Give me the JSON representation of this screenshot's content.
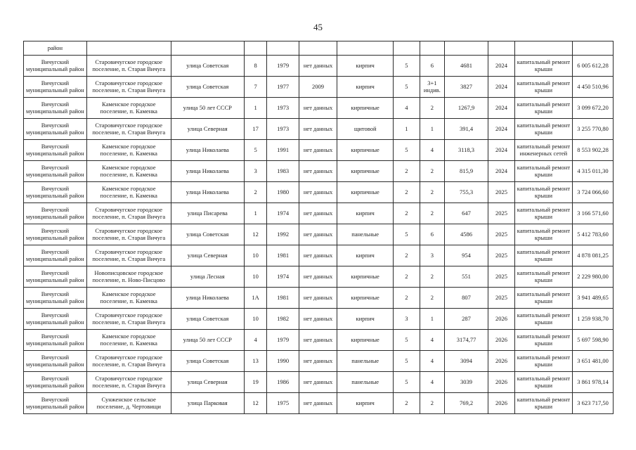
{
  "page": {
    "number": "45"
  },
  "table": {
    "carryover_row": [
      "район",
      "",
      "",
      "",
      "",
      "",
      "",
      "",
      "",
      "",
      "",
      "",
      ""
    ],
    "rows": [
      [
        "Вичугский муниципальный район",
        "Старовичугское городское поселение, п. Старая Вичуга",
        "улица Советская",
        "8",
        "1979",
        "нет данных",
        "кирпич",
        "5",
        "6",
        "4681",
        "2024",
        "капитальный ремонт крыши",
        "6 005 612,28"
      ],
      [
        "Вичугский муниципальный район",
        "Старовичугское городское поселение, п. Старая Вичуга",
        "улица Советская",
        "7",
        "1977",
        "2009",
        "кирпич",
        "5",
        "3+1 индив.",
        "3827",
        "2024",
        "капитальный ремонт крыши",
        "4 450 510,96"
      ],
      [
        "Вичугский муниципальный район",
        "Каменское городское поселение, п. Каменка",
        "улица 50 лет СССР",
        "1",
        "1973",
        "нет данных",
        "кирпичные",
        "4",
        "2",
        "1267,9",
        "2024",
        "капитальный ремонт крыши",
        "3 099 672,20"
      ],
      [
        "Вичугский муниципальный район",
        "Старовичугское городское поселение, п. Старая Вичуга",
        "улица Северная",
        "17",
        "1973",
        "нет данных",
        "щитовой",
        "1",
        "1",
        "391,4",
        "2024",
        "капитальный ремонт крыши",
        "3 255 770,80"
      ],
      [
        "Вичугский муниципальный район",
        "Каменское городское поселение, п. Каменка",
        "улица Николаева",
        "5",
        "1991",
        "нет данных",
        "кирпичные",
        "5",
        "4",
        "3118,3",
        "2024",
        "капитальный ремонт инженерных сетей",
        "8 553 902,28"
      ],
      [
        "Вичугский муниципальный район",
        "Каменское городское поселение, п. Каменка",
        "улица Николаева",
        "3",
        "1983",
        "нет данных",
        "кирпичные",
        "2",
        "2",
        "815,9",
        "2024",
        "капитальный ремонт крыши",
        "4 315 011,30"
      ],
      [
        "Вичугский муниципальный район",
        "Каменское городское поселение, п. Каменка",
        "улица Николаева",
        "2",
        "1980",
        "нет данных",
        "кирпичные",
        "2",
        "2",
        "755,3",
        "2025",
        "капитальный ремонт крыши",
        "3 724 066,60"
      ],
      [
        "Вичугский муниципальный район",
        "Старовичугское городское поселение, п. Старая Вичуга",
        "улица Писарева",
        "1",
        "1974",
        "нет данных",
        "кирпич",
        "2",
        "2",
        "647",
        "2025",
        "капитальный ремонт крыши",
        "3 166 571,60"
      ],
      [
        "Вичугский муниципальный район",
        "Старовичугское городское поселение, п. Старая Вичуга",
        "улица Советская",
        "12",
        "1992",
        "нет данных",
        "панельные",
        "5",
        "6",
        "4586",
        "2025",
        "капитальный ремонт крыши",
        "5 412 783,60"
      ],
      [
        "Вичугский муниципальный район",
        "Старовичугское городское поселение, п. Старая Вичуга",
        "улица Северная",
        "10",
        "1981",
        "нет данных",
        "кирпич",
        "2",
        "3",
        "954",
        "2025",
        "капитальный ремонт крыши",
        "4 878 081,25"
      ],
      [
        "Вичугский муниципальный район",
        "Новописцовское городское поселение, п. Ново-Писцово",
        "улица Лесная",
        "10",
        "1974",
        "нет данных",
        "кирпичные",
        "2",
        "2",
        "551",
        "2025",
        "капитальный ремонт крыши",
        "2 229 980,00"
      ],
      [
        "Вичугский муниципальный район",
        "Каменское городское поселение, п. Каменка",
        "улица Николаева",
        "1А",
        "1981",
        "нет данных",
        "кирпичные",
        "2",
        "2",
        "807",
        "2025",
        "капитальный ремонт крыши",
        "3 941 489,65"
      ],
      [
        "Вичугский муниципальный район",
        "Старовичугское городское поселение, п. Старая Вичуга",
        "улица Советская",
        "10",
        "1982",
        "нет данных",
        "кирпич",
        "3",
        "1",
        "287",
        "2026",
        "капитальный ремонт крыши",
        "1 259 938,70"
      ],
      [
        "Вичугский муниципальный район",
        "Каменское городское поселение, п. Каменка",
        "улица 50 лет СССР",
        "4",
        "1979",
        "нет данных",
        "кирпичные",
        "5",
        "4",
        "3174,77",
        "2026",
        "капитальный ремонт крыши",
        "5 697 598,90"
      ],
      [
        "Вичугский муниципальный район",
        "Старовичугское городское поселение, п. Старая Вичуга",
        "улица Советская",
        "13",
        "1990",
        "нет данных",
        "панельные",
        "5",
        "4",
        "3094",
        "2026",
        "капитальный ремонт крыши",
        "3 651 481,00"
      ],
      [
        "Вичугский муниципальный район",
        "Старовичугское городское поселение, п. Старая Вичуга",
        "улица Северная",
        "19",
        "1986",
        "нет данных",
        "панельные",
        "5",
        "4",
        "3039",
        "2026",
        "капитальный ремонт крыши",
        "3 861 978,14"
      ],
      [
        "Вичугский муниципальный район",
        "Сунженское сельское поселение, д. Чертовищи",
        "улица Парковая",
        "12",
        "1975",
        "нет данных",
        "кирпич",
        "2",
        "2",
        "769,2",
        "2026",
        "капитальный ремонт крыши",
        "3 623 717,50"
      ]
    ]
  }
}
